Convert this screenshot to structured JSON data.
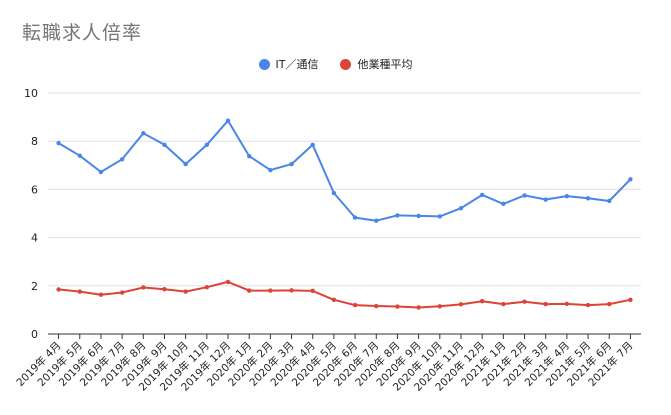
{
  "chart_data": {
    "type": "line",
    "title": "転職求人倍率",
    "xlabel": "",
    "ylabel": "",
    "ylim": [
      0,
      10
    ],
    "yticks": [
      "0",
      "2",
      "4",
      "6",
      "8",
      "10"
    ],
    "grid": true,
    "legend_position": "top-center",
    "categories": [
      "2019年 4月",
      "2019年 5月",
      "2019年 6月",
      "2019年 7月",
      "2019年 8月",
      "2019年 9月",
      "2019年 10月",
      "2019年 11月",
      "2019年 12月",
      "2020年 1月",
      "2020年 2月",
      "2020年 3月",
      "2020年 4月",
      "2020年 5月",
      "2020年 6月",
      "2020年 7月",
      "2020年 8月",
      "2020年 9月",
      "2020年 10月",
      "2020年 11月",
      "2020年 12月",
      "2021年 1月",
      "2021年 2月",
      "2021年 3月",
      "2021年 4月",
      "2021年 5月",
      "2021年 6月",
      "2021年 7月"
    ],
    "series": [
      {
        "name": "IT／通信",
        "color": "#4a86e8",
        "values": [
          7.92,
          7.4,
          6.72,
          7.25,
          8.33,
          7.85,
          7.05,
          7.85,
          8.85,
          7.38,
          6.8,
          7.05,
          7.85,
          5.85,
          4.83,
          4.7,
          4.92,
          4.9,
          4.88,
          5.22,
          5.77,
          5.4,
          5.75,
          5.58,
          5.72,
          5.63,
          5.52,
          6.42
        ]
      },
      {
        "name": "他業種平均",
        "color": "#db4437",
        "values": [
          1.85,
          1.76,
          1.63,
          1.72,
          1.93,
          1.86,
          1.76,
          1.94,
          2.16,
          1.8,
          1.8,
          1.81,
          1.79,
          1.42,
          1.2,
          1.16,
          1.14,
          1.1,
          1.15,
          1.23,
          1.36,
          1.24,
          1.34,
          1.24,
          1.25,
          1.2,
          1.24,
          1.42
        ]
      }
    ]
  }
}
